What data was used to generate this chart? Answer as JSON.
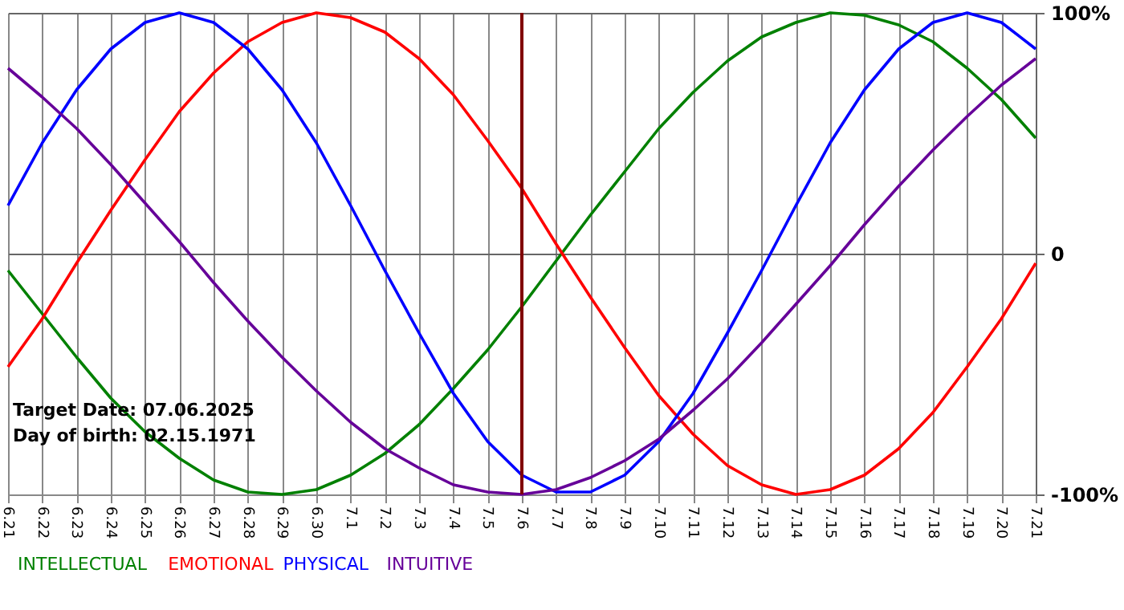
{
  "chart_data": {
    "type": "line",
    "categories": [
      "6.21",
      "6.22",
      "6.23",
      "6.24",
      "6.25",
      "6.26",
      "6.27",
      "6.28",
      "6.29",
      "6.30",
      "7.1",
      "7.2",
      "7.3",
      "7.4",
      "7.5",
      "7.6",
      "7.7",
      "7.8",
      "7.9",
      "7.10",
      "7.11",
      "7.12",
      "7.13",
      "7.14",
      "7.15",
      "7.16",
      "7.17",
      "7.18",
      "7.19",
      "7.20",
      "7.21"
    ],
    "series": [
      {
        "name": "INTELLECTUAL",
        "color": "#008000",
        "values": [
          -7,
          -25,
          -43,
          -60,
          -74,
          -85,
          -94,
          -99,
          -100,
          -98,
          -92,
          -83,
          -71,
          -56,
          -40,
          -22,
          -3,
          16,
          34,
          52,
          67,
          80,
          90,
          96,
          100,
          99,
          95,
          88,
          77,
          64,
          48
        ]
      },
      {
        "name": "EMOTIONAL",
        "color": "#ff0000",
        "values": [
          -47,
          -27,
          -4,
          18,
          39,
          59,
          75,
          88,
          96,
          100,
          98,
          92,
          81,
          66,
          47,
          27,
          4,
          -18,
          -39,
          -59,
          -75,
          -88,
          -96,
          -100,
          -98,
          -92,
          -81,
          -66,
          -47,
          -27,
          -4
        ]
      },
      {
        "name": "PHYSICAL",
        "color": "#0000ff",
        "values": [
          20,
          46,
          68,
          85,
          96,
          100,
          96,
          85,
          68,
          46,
          20,
          -7,
          -33,
          -58,
          -78,
          -92,
          -99,
          -99,
          -92,
          -78,
          -58,
          -33,
          -7,
          20,
          46,
          68,
          85,
          96,
          100,
          96,
          85
        ]
      },
      {
        "name": "INTUITIVE",
        "color": "#660099",
        "values": [
          77,
          65,
          52,
          37,
          21,
          5,
          -12,
          -28,
          -43,
          -57,
          -70,
          -81,
          -89,
          -96,
          -99,
          -100,
          -98,
          -93,
          -86,
          -77,
          -65,
          -52,
          -37,
          -21,
          -5,
          12,
          28,
          43,
          57,
          70,
          81
        ]
      }
    ],
    "ylim": [
      -100,
      100
    ],
    "yticks": [
      {
        "value": 100,
        "label": "100%"
      },
      0,
      {
        "value": -100,
        "label": "-100%"
      }
    ],
    "ref_lines": [
      {
        "axis": "x",
        "value": "7.6",
        "color": "#800000"
      }
    ],
    "annotations": [
      "Target Date: 07.06.2025",
      "Day of birth: 02.15.1971"
    ],
    "grid": true,
    "legend": "bottom",
    "marker": "none",
    "line_style": "solid"
  }
}
